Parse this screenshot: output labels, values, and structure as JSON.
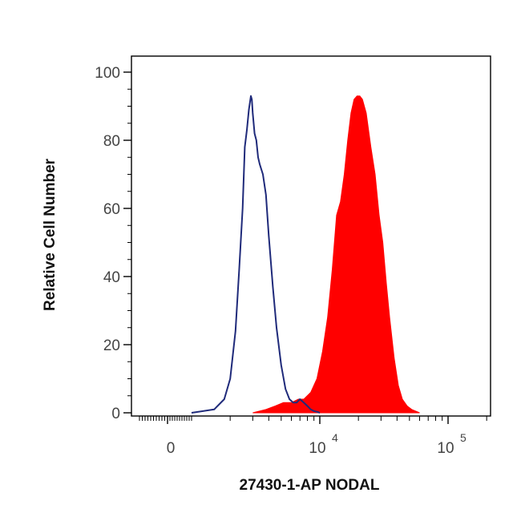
{
  "chart_data": {
    "type": "area",
    "xlabel": "27430-1-AP NODAL",
    "ylabel": "Relative Cell Number",
    "x_scale": "biexponential",
    "ylim": [
      0,
      100
    ],
    "yticks": [
      "0",
      "20",
      "40",
      "60",
      "80",
      "100"
    ],
    "xticks": [
      {
        "base": "0",
        "exp": ""
      },
      {
        "base": "10",
        "exp": "4"
      },
      {
        "base": "10",
        "exp": "5"
      }
    ],
    "grid": false,
    "series": [
      {
        "name": "",
        "style": "outline",
        "color": "#1f2a7a",
        "x": [
          1000,
          1500,
          1800,
          2000,
          2200,
          2350,
          2500,
          2600,
          2700,
          2800,
          2900,
          2950,
          3000,
          3100,
          3200,
          3300,
          3400,
          3600,
          3800,
          4000,
          4300,
          4600,
          5000,
          5400,
          5800,
          6200,
          6600,
          7000,
          7500,
          8000,
          8500,
          9000,
          9500,
          10000
        ],
        "y": [
          0,
          1,
          4,
          10,
          24,
          42,
          60,
          78,
          83,
          89,
          93,
          92,
          88,
          82,
          80,
          75,
          73,
          70,
          64,
          52,
          37,
          25,
          14,
          7,
          4,
          3,
          3,
          4,
          3,
          2,
          1,
          0.5,
          0.3,
          0
        ]
      },
      {
        "name": "",
        "style": "filled",
        "color": "#ff0000",
        "x": [
          3000,
          3800,
          4500,
          5200,
          6000,
          6800,
          7500,
          8500,
          9500,
          10500,
          11500,
          12500,
          13500,
          14500,
          15500,
          16500,
          17500,
          18500,
          19500,
          20500,
          21500,
          23000,
          25000,
          27000,
          29000,
          31000,
          33000,
          35000,
          38000,
          41000,
          44000,
          48000,
          52000,
          56000,
          60000
        ],
        "y": [
          0,
          1,
          2,
          3,
          3,
          4,
          4,
          6,
          10,
          18,
          28,
          42,
          58,
          62,
          70,
          80,
          88,
          92,
          93,
          93,
          92,
          88,
          78,
          70,
          58,
          50,
          38,
          28,
          16,
          8,
          4,
          2,
          1,
          0.5,
          0
        ]
      }
    ]
  }
}
